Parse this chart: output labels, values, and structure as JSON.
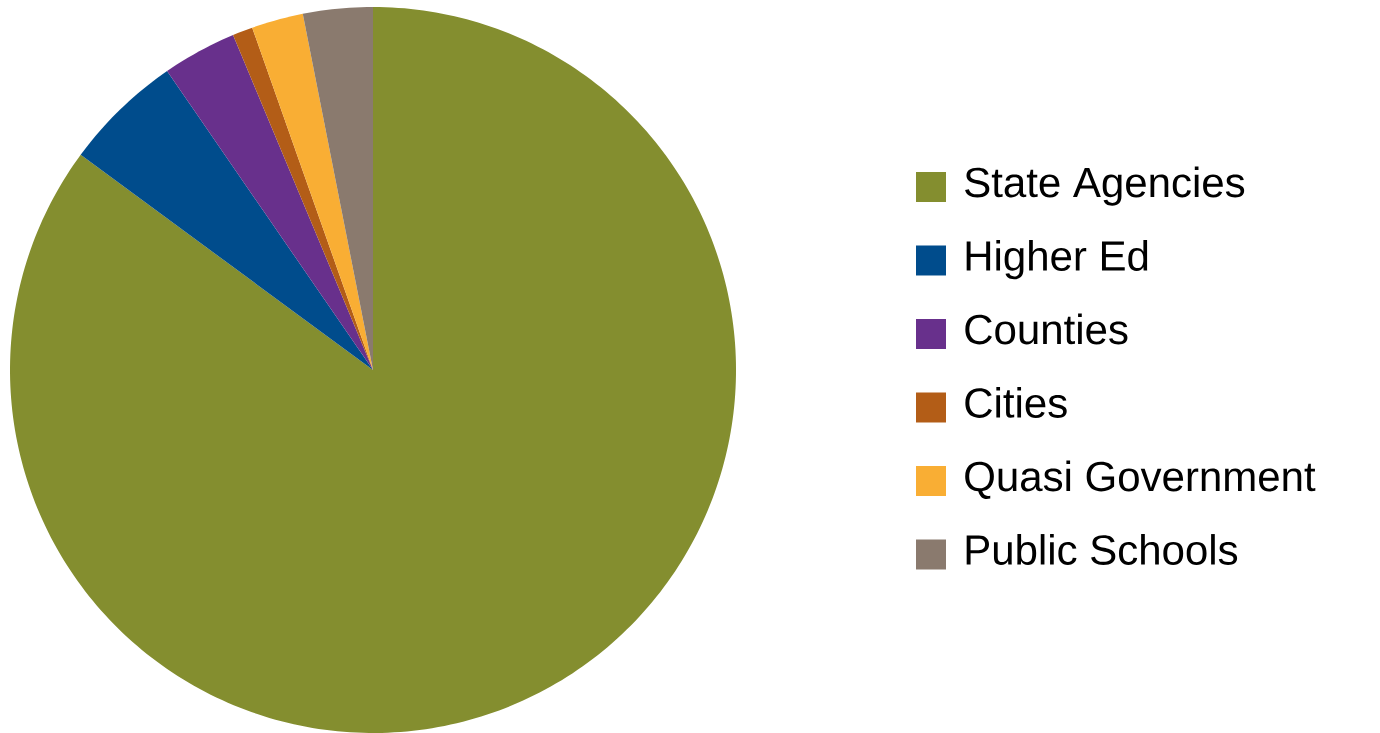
{
  "chart_data": {
    "type": "pie",
    "categories": [
      "State Agencies",
      "Higher Ed",
      "Counties",
      "Cities",
      "Quasi Government",
      "Public Schools"
    ],
    "values": [
      85.1,
      5.3,
      3.3,
      0.9,
      2.3,
      3.1
    ],
    "colors": [
      "#848e2f",
      "#004c8c",
      "#68308c",
      "#b35d17",
      "#f9ae34",
      "#8a7a6e"
    ],
    "legend": "right"
  }
}
